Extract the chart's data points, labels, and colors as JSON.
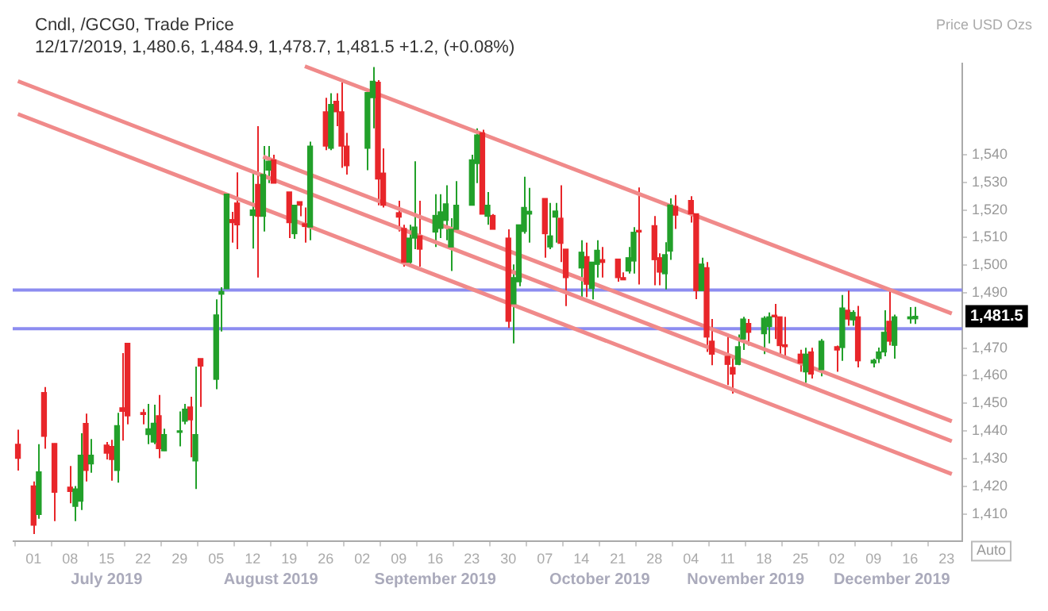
{
  "chart_data": {
    "type": "candlestick",
    "title": "Cndl, /GCG0, Trade Price",
    "subtitle": "12/17/2019, 1,480.6, 1,484.9, 1,478.7, 1,481.5 +1.2, (+0.08%)",
    "ylabel": "Price USD Ozs",
    "xlim": [
      "2019-06-27",
      "2019-12-26"
    ],
    "xticks": [
      {
        "value": "2019-07-01",
        "label": "01"
      },
      {
        "value": "2019-07-08",
        "label": "08"
      },
      {
        "value": "2019-07-15",
        "label": "15"
      },
      {
        "value": "2019-07-22",
        "label": "22"
      },
      {
        "value": "2019-07-29",
        "label": "29"
      },
      {
        "value": "2019-08-05",
        "label": "05"
      },
      {
        "value": "2019-08-12",
        "label": "12"
      },
      {
        "value": "2019-08-19",
        "label": "19"
      },
      {
        "value": "2019-08-26",
        "label": "26"
      },
      {
        "value": "2019-09-02",
        "label": "02"
      },
      {
        "value": "2019-09-09",
        "label": "09"
      },
      {
        "value": "2019-09-16",
        "label": "16"
      },
      {
        "value": "2019-09-23",
        "label": "23"
      },
      {
        "value": "2019-09-30",
        "label": "30"
      },
      {
        "value": "2019-10-07",
        "label": "07"
      },
      {
        "value": "2019-10-14",
        "label": "14"
      },
      {
        "value": "2019-10-21",
        "label": "21"
      },
      {
        "value": "2019-10-28",
        "label": "28"
      },
      {
        "value": "2019-11-04",
        "label": "04"
      },
      {
        "value": "2019-11-11",
        "label": "11"
      },
      {
        "value": "2019-11-18",
        "label": "18"
      },
      {
        "value": "2019-11-25",
        "label": "25"
      },
      {
        "value": "2019-12-02",
        "label": "02"
      },
      {
        "value": "2019-12-09",
        "label": "09"
      },
      {
        "value": "2019-12-16",
        "label": "16"
      },
      {
        "value": "2019-12-23",
        "label": "23"
      }
    ],
    "ylim": [
      1400,
      1573
    ],
    "yticks": [
      {
        "value": 1410,
        "label": "1,410"
      },
      {
        "value": 1420,
        "label": "1,420"
      },
      {
        "value": 1430,
        "label": "1,430"
      },
      {
        "value": 1440,
        "label": "1,440"
      },
      {
        "value": 1450,
        "label": "1,450"
      },
      {
        "value": 1460,
        "label": "1,460"
      },
      {
        "value": 1470,
        "label": "1,470"
      },
      {
        "value": 1490,
        "label": "1,490"
      },
      {
        "value": 1500,
        "label": "1,500"
      },
      {
        "value": 1510,
        "label": "1,510"
      },
      {
        "value": 1520,
        "label": "1,520"
      },
      {
        "value": 1530,
        "label": "1,530"
      },
      {
        "value": 1540,
        "label": "1,540"
      }
    ],
    "grid": false,
    "legend": false,
    "series": [
      {
        "color": "#22a02a",
        "x": [
          "2019-07-02",
          "2019-07-09",
          "2019-07-10",
          "2019-07-12",
          "2019-07-17",
          "2019-07-23",
          "2019-07-24",
          "2019-07-26",
          "2019-07-29",
          "2019-07-30",
          "2019-08-01",
          "2019-08-05",
          "2019-08-06",
          "2019-08-07",
          "2019-08-12",
          "2019-08-14",
          "2019-08-15",
          "2019-08-20",
          "2019-08-23",
          "2019-08-27",
          "2019-09-03",
          "2019-09-04",
          "2019-09-11",
          "2019-09-12",
          "2019-09-16",
          "2019-09-17",
          "2019-09-18",
          "2019-09-19",
          "2019-09-20",
          "2019-09-23",
          "2019-09-24",
          "2019-09-26",
          "2019-10-01",
          "2019-10-02",
          "2019-10-03",
          "2019-10-04",
          "2019-10-08",
          "2019-10-09",
          "2019-10-14",
          "2019-10-16",
          "2019-10-17",
          "2019-10-23",
          "2019-10-24",
          "2019-10-30",
          "2019-10-31",
          "2019-11-06",
          "2019-11-13",
          "2019-11-14",
          "2019-11-18",
          "2019-11-19",
          "2019-11-26",
          "2019-11-29",
          "2019-12-03",
          "2019-12-05",
          "2019-12-09",
          "2019-12-10",
          "2019-12-11",
          "2019-12-13",
          "2019-12-16",
          "2019-12-17"
        ],
        "ohlc": [
          [
            1409.8,
            1435.2,
            1408.2,
            1425.2
          ],
          [
            1412.7,
            1420.1,
            1407.4,
            1419.0
          ],
          [
            1414.6,
            1439.2,
            1411.4,
            1431.2
          ],
          [
            1428.1,
            1437.1,
            1424.9,
            1431.2
          ],
          [
            1425.7,
            1446.6,
            1421.3,
            1441.9
          ],
          [
            1438.7,
            1449.8,
            1435.2,
            1440.8
          ],
          [
            1436.0,
            1449.5,
            1435.2,
            1442.8
          ],
          [
            1432.8,
            1440.8,
            1432.8,
            1438.7
          ],
          [
            1439.5,
            1447.1,
            1434.4,
            1440.0
          ],
          [
            1443.5,
            1449.8,
            1442.4,
            1447.9
          ],
          [
            1429.2,
            1463.3,
            1419.0,
            1438.7
          ],
          [
            1458.7,
            1487.6,
            1455.1,
            1482.0
          ],
          [
            1489.5,
            1492.0,
            1476.0,
            1490.5
          ],
          [
            1491.5,
            1525.7,
            1491.5,
            1525.7
          ],
          [
            1518.0,
            1534.0,
            1506.0,
            1520.0
          ],
          [
            1517.7,
            1543.1,
            1512.2,
            1532.8
          ],
          [
            1534.4,
            1543.1,
            1529.7,
            1537.6
          ],
          [
            1511.4,
            1521.7,
            1509.5,
            1521.7
          ],
          [
            1513.8,
            1544.7,
            1509.0,
            1543.1
          ],
          [
            1542.3,
            1562.2,
            1541.6,
            1558.2
          ],
          [
            1542.3,
            1563.8,
            1534.4,
            1562.5
          ],
          [
            1560.6,
            1571.7,
            1549.5,
            1566.6
          ],
          [
            1501.1,
            1514.6,
            1500.3,
            1509.8
          ],
          [
            1509.8,
            1537.6,
            1505.8,
            1513.8
          ],
          [
            1512.0,
            1525.7,
            1506.6,
            1518.0
          ],
          [
            1513.3,
            1525.7,
            1509.8,
            1519.3
          ],
          [
            1516.2,
            1528.9,
            1509.0,
            1522.2
          ],
          [
            1506.6,
            1517.0,
            1497.9,
            1513.0
          ],
          [
            1513.0,
            1530.4,
            1512.2,
            1521.7
          ],
          [
            1521.7,
            1540.0,
            1521.7,
            1538.1
          ],
          [
            1536.8,
            1549.5,
            1529.7,
            1547.1
          ],
          [
            1517.7,
            1526.5,
            1514.6,
            1521.7
          ],
          [
            1486.0,
            1500.3,
            1471.7,
            1495.5
          ],
          [
            1494.0,
            1514.6,
            1492.4,
            1514.6
          ],
          [
            1512.2,
            1532.0,
            1511.4,
            1520.9
          ],
          [
            1518.5,
            1528.0,
            1508.2,
            1519.5
          ],
          [
            1506.6,
            1522.5,
            1505.8,
            1510.6
          ],
          [
            1517.4,
            1522.5,
            1508.2,
            1519.6
          ],
          [
            1499.0,
            1509.0,
            1488.4,
            1504.7
          ],
          [
            1491.6,
            1501.1,
            1487.6,
            1501.1
          ],
          [
            1500.3,
            1509.0,
            1495.5,
            1505.4
          ],
          [
            1497.9,
            1506.6,
            1497.0,
            1502.7
          ],
          [
            1501.5,
            1513.8,
            1497.0,
            1511.9
          ],
          [
            1496.9,
            1508.3,
            1491.2,
            1503.8
          ],
          [
            1505.1,
            1524.2,
            1501.9,
            1521.8
          ],
          [
            1490.8,
            1502.7,
            1490.8,
            1500.4
          ],
          [
            1464.1,
            1474.9,
            1463.8,
            1470.5
          ],
          [
            1473.3,
            1481.3,
            1469.3,
            1480.5
          ],
          [
            1475.2,
            1481.5,
            1467.8,
            1480.8
          ],
          [
            1477.8,
            1482.9,
            1471.7,
            1481.3
          ],
          [
            1461.4,
            1470.1,
            1457.4,
            1467.8
          ],
          [
            1462.2,
            1473.3,
            1459.8,
            1472.5
          ],
          [
            1470.2,
            1489.2,
            1465.4,
            1484.5
          ],
          [
            1480.2,
            1483.7,
            1478.1,
            1482.9
          ],
          [
            1464.6,
            1466.2,
            1463.0,
            1465.6
          ],
          [
            1466.2,
            1470.2,
            1464.6,
            1468.6
          ],
          [
            1468.6,
            1483.7,
            1467.0,
            1475.7
          ],
          [
            1471.0,
            1482.1,
            1466.2,
            1481.3
          ],
          [
            1480.6,
            1484.8,
            1478.9,
            1481.3
          ],
          [
            1480.6,
            1484.9,
            1478.7,
            1481.5
          ]
        ]
      },
      {
        "color": "#e8262a",
        "x": [
          "2019-06-28",
          "2019-07-01",
          "2019-07-03",
          "2019-07-05",
          "2019-07-08",
          "2019-07-11",
          "2019-07-15",
          "2019-07-16",
          "2019-07-18",
          "2019-07-19",
          "2019-07-22",
          "2019-07-25",
          "2019-07-31",
          "2019-08-02",
          "2019-08-08",
          "2019-08-09",
          "2019-08-13",
          "2019-08-16",
          "2019-08-19",
          "2019-08-21",
          "2019-08-22",
          "2019-08-26",
          "2019-08-28",
          "2019-08-29",
          "2019-08-30",
          "2019-09-05",
          "2019-09-06",
          "2019-09-09",
          "2019-09-10",
          "2019-09-13",
          "2019-09-25",
          "2019-09-27",
          "2019-09-30",
          "2019-10-07",
          "2019-10-10",
          "2019-10-11",
          "2019-10-15",
          "2019-10-18",
          "2019-10-21",
          "2019-10-22",
          "2019-10-25",
          "2019-10-28",
          "2019-10-29",
          "2019-11-01",
          "2019-11-04",
          "2019-11-05",
          "2019-11-07",
          "2019-11-08",
          "2019-11-11",
          "2019-11-12",
          "2019-11-15",
          "2019-11-20",
          "2019-11-21",
          "2019-11-22",
          "2019-11-25",
          "2019-11-27",
          "2019-12-02",
          "2019-12-04",
          "2019-12-06",
          "2019-12-12"
        ],
        "ohlc": [
          [
            1435.2,
            1440.5,
            1425.7,
            1430.1
          ],
          [
            1420.1,
            1421.7,
            1402.7,
            1405.9
          ],
          [
            1453.9,
            1455.9,
            1433.6,
            1438.1
          ],
          [
            1435.5,
            1435.5,
            1407.4,
            1417.8
          ],
          [
            1419.7,
            1427.3,
            1413.8,
            1418.1
          ],
          [
            1442.7,
            1446.3,
            1421.7,
            1425.7
          ],
          [
            1434.9,
            1436.0,
            1429.7,
            1432.0
          ],
          [
            1434.4,
            1436.8,
            1422.0,
            1429.7
          ],
          [
            1448.4,
            1468.2,
            1436.5,
            1447.1
          ],
          [
            1471.7,
            1471.7,
            1442.4,
            1445.5
          ],
          [
            1446.7,
            1447.9,
            1442.4,
            1446.0
          ],
          [
            1445.5,
            1453.0,
            1430.1,
            1433.6
          ],
          [
            1448.7,
            1452.4,
            1430.5,
            1444.0
          ],
          [
            1466.2,
            1466.2,
            1448.7,
            1463.5
          ],
          [
            1516.5,
            1519.3,
            1508.2,
            1515.4
          ],
          [
            1522.5,
            1533.6,
            1505.8,
            1514.6
          ],
          [
            1529.2,
            1550.3,
            1495.5,
            1517.7
          ],
          [
            1538.1,
            1540.0,
            1529.7,
            1529.7
          ],
          [
            1526.5,
            1526.5,
            1509.8,
            1515.4
          ],
          [
            1523.0,
            1523.0,
            1517.7,
            1521.7
          ],
          [
            1515.0,
            1520.9,
            1508.2,
            1514.0
          ],
          [
            1555.5,
            1560.6,
            1541.6,
            1543.1
          ],
          [
            1559.3,
            1562.2,
            1550.3,
            1555.5
          ],
          [
            1555.5,
            1566.2,
            1535.2,
            1543.1
          ],
          [
            1543.1,
            1547.9,
            1532.8,
            1536.0
          ],
          [
            1566.2,
            1567.0,
            1521.7,
            1531.2
          ],
          [
            1533.3,
            1542.3,
            1520.9,
            1521.7
          ],
          [
            1519.0,
            1523.3,
            1512.2,
            1517.4
          ],
          [
            1513.3,
            1514.6,
            1499.5,
            1501.1
          ],
          [
            1510.6,
            1523.3,
            1499.5,
            1505.8
          ],
          [
            1547.9,
            1549.0,
            1518.5,
            1518.5
          ],
          [
            1518.0,
            1518.5,
            1513.0,
            1513.0
          ],
          [
            1509.8,
            1513.0,
            1477.3,
            1479.7
          ],
          [
            1524.1,
            1524.1,
            1502.7,
            1511.4
          ],
          [
            1517.0,
            1528.9,
            1501.1,
            1507.9
          ],
          [
            1505.8,
            1505.8,
            1485.2,
            1495.5
          ],
          [
            1503.1,
            1508.2,
            1488.4,
            1493.1
          ],
          [
            1502.0,
            1506.6,
            1495.5,
            1501.0
          ],
          [
            1502.2,
            1502.2,
            1494.0,
            1495.5
          ],
          [
            1495.5,
            1497.4,
            1494.7,
            1494.7
          ],
          [
            1512.6,
            1528.1,
            1493.0,
            1512.0
          ],
          [
            1514.3,
            1517.8,
            1492.7,
            1502.0
          ],
          [
            1502.7,
            1504.3,
            1492.7,
            1497.5
          ],
          [
            1521.3,
            1525.4,
            1513.1,
            1518.1
          ],
          [
            1523.4,
            1525.0,
            1515.4,
            1518.6
          ],
          [
            1518.6,
            1518.6,
            1487.7,
            1490.8
          ],
          [
            1499.1,
            1501.1,
            1468.6,
            1474.0
          ],
          [
            1472.5,
            1480.5,
            1463.8,
            1467.8
          ],
          [
            1467.0,
            1474.1,
            1456.6,
            1464.1
          ],
          [
            1463.0,
            1466.2,
            1453.5,
            1460.6
          ],
          [
            1478.9,
            1480.5,
            1470.9,
            1475.7
          ],
          [
            1481.9,
            1486.0,
            1473.3,
            1481.3
          ],
          [
            1481.3,
            1481.3,
            1467.0,
            1470.9
          ],
          [
            1471.2,
            1481.3,
            1466.2,
            1470.5
          ],
          [
            1467.8,
            1469.4,
            1461.4,
            1464.6
          ],
          [
            1468.6,
            1470.1,
            1459.0,
            1460.6
          ],
          [
            1470.5,
            1470.9,
            1461.4,
            1469.3
          ],
          [
            1483.7,
            1490.8,
            1478.1,
            1480.5
          ],
          [
            1481.3,
            1485.3,
            1463.0,
            1465.4
          ],
          [
            1479.7,
            1491.6,
            1471.0,
            1472.5
          ]
        ]
      },
      {
        "type": "line",
        "color": "#f08a8a",
        "x": [
          "2019-08-22",
          "2019-12-24"
        ],
        "values": [
          1572,
          1482.5
        ]
      },
      {
        "type": "line",
        "color": "#f08a8a",
        "x": [
          "2019-08-14",
          "2019-12-24"
        ],
        "values": [
          1539.3,
          1443.5
        ]
      },
      {
        "type": "line",
        "color": "#f08a8a",
        "x": [
          "2019-06-28",
          "2019-12-24"
        ],
        "values": [
          1566.6,
          1436.3
        ]
      },
      {
        "type": "line",
        "color": "#f08a8a",
        "x": [
          "2019-06-28",
          "2019-12-24"
        ],
        "values": [
          1554.7,
          1424.4
        ]
      }
    ],
    "ref_lines": [
      {
        "axis": "y",
        "value": 1491,
        "color": "#8c8cf0"
      },
      {
        "axis": "y",
        "value": 1477,
        "color": "#8c8cf0"
      }
    ],
    "annotations": [
      "July 2019",
      "August 2019",
      "September 2019",
      "October 2019",
      "November 2019",
      "December 2019",
      "1,481.5",
      "Auto"
    ]
  }
}
